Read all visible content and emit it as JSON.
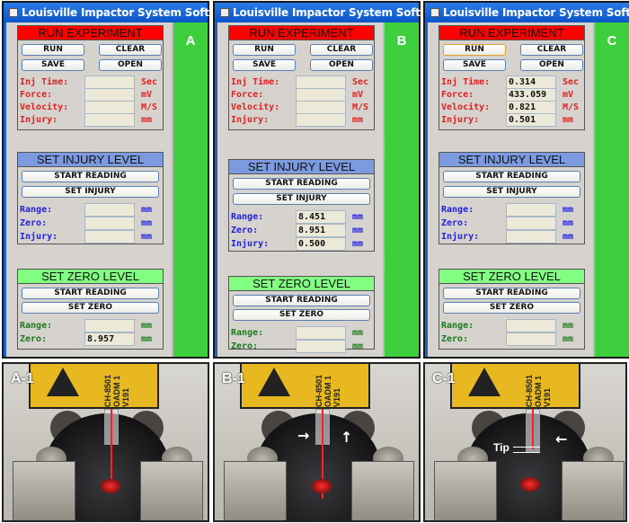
{
  "window_title": "Louisville Impactor System Software",
  "colors": {
    "run_header": "#ff0000",
    "injury_header": "#7b9ae0",
    "zero_header": "#80ff80",
    "side_panel": "#3ecf3e",
    "title_bar": "#1a66d9"
  },
  "labels": {
    "run_header": "RUN EXPERIMENT",
    "run": "RUN",
    "clear": "CLEAR",
    "save": "SAVE",
    "open": "OPEN",
    "inj_time": "Inj Time:",
    "force": "Force:",
    "velocity": "Velocity:",
    "injury": "Injury:",
    "sec": "Sec",
    "mv": "mV",
    "ms": "M/S",
    "mm": "mm",
    "injury_header": "SET INJURY LEVEL",
    "start_reading": "START READING",
    "set_injury": "SET INJURY",
    "range": "Range:",
    "zero": "Zero:",
    "zero_header": "SET ZERO LEVEL",
    "set_zero": "SET ZERO"
  },
  "panels": [
    {
      "letter": "A",
      "run": {
        "inj_time": "",
        "force": "",
        "velocity": "",
        "injury": ""
      },
      "set_injury": {
        "range": "",
        "zero": "",
        "injury": ""
      },
      "set_zero": {
        "range": "",
        "zero": "8.957"
      }
    },
    {
      "letter": "B",
      "run": {
        "inj_time": "",
        "force": "",
        "velocity": "",
        "injury": ""
      },
      "set_injury": {
        "range": "8.451",
        "zero": "8.951",
        "injury": "0.500"
      },
      "set_zero": {
        "range": "",
        "zero": ""
      }
    },
    {
      "letter": "C",
      "run": {
        "inj_time": "0.314",
        "force": "433.059",
        "velocity": "0.821",
        "injury": "0.501"
      },
      "set_injury": {
        "range": "",
        "zero": "",
        "injury": ""
      },
      "set_zero": {
        "range": "",
        "zero": ""
      }
    }
  ],
  "photos": [
    {
      "label": "A-1"
    },
    {
      "label": "B-1"
    },
    {
      "label": "C-1",
      "tip_label": "Tip"
    }
  ],
  "laser_label": "CH-8501 OADM 1 V191"
}
